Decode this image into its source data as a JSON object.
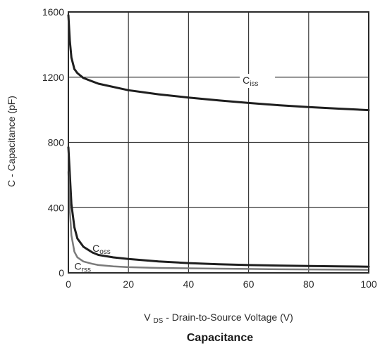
{
  "chart_data": {
    "type": "line",
    "caption": "Capacitance",
    "xlabel_main": "V",
    "xlabel_sub": "DS",
    "xlabel_rest": " - Drain-to-Source Voltage (V)",
    "ylabel": "C - Capacitance (pF)",
    "xlim": [
      0,
      100
    ],
    "ylim": [
      0,
      1600
    ],
    "xticks": [
      0,
      20,
      40,
      60,
      80,
      100
    ],
    "yticks": [
      0,
      400,
      800,
      1200,
      1600
    ],
    "grid": true,
    "series": [
      {
        "name_main": "C",
        "name_sub": "iss",
        "color": "#1e1e1e",
        "x": [
          0,
          0.5,
          1,
          2,
          3,
          5,
          10,
          20,
          30,
          40,
          50,
          60,
          70,
          80,
          90,
          100
        ],
        "y": [
          1580,
          1420,
          1320,
          1250,
          1225,
          1195,
          1160,
          1120,
          1095,
          1075,
          1058,
          1042,
          1028,
          1017,
          1007,
          998
        ]
      },
      {
        "name_main": "C",
        "name_sub": "oss",
        "color": "#1e1e1e",
        "x": [
          0,
          0.5,
          1,
          2,
          3,
          5,
          8,
          10,
          15,
          20,
          30,
          40,
          50,
          60,
          70,
          80,
          90,
          100
        ],
        "y": [
          770,
          600,
          420,
          280,
          210,
          160,
          125,
          110,
          95,
          85,
          70,
          60,
          53,
          48,
          45,
          42,
          40,
          38
        ]
      },
      {
        "name_main": "C",
        "name_sub": "rss",
        "color": "#7a7a7a",
        "x": [
          0,
          0.5,
          1,
          2,
          3,
          5,
          8,
          10,
          15,
          20,
          30,
          40,
          50,
          60,
          70,
          80,
          90,
          100
        ],
        "y": [
          620,
          380,
          230,
          130,
          95,
          70,
          55,
          48,
          40,
          35,
          30,
          28,
          26,
          24,
          22,
          21,
          20,
          19
        ]
      }
    ]
  }
}
